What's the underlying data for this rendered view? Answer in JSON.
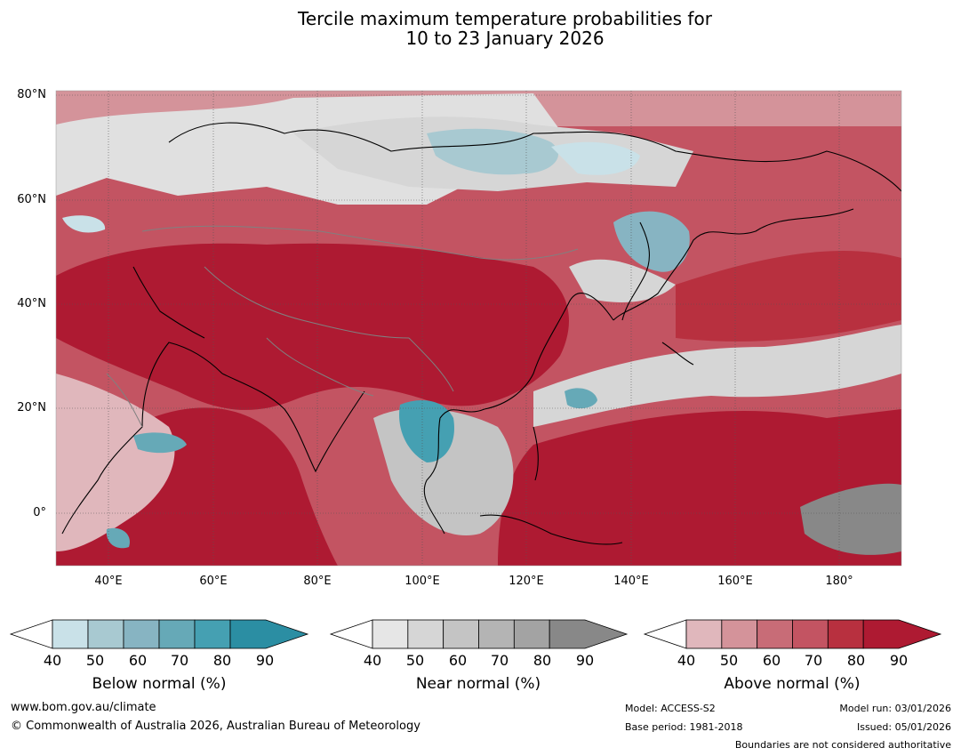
{
  "title": {
    "line1": "Tercile maximum temperature probabilities for",
    "line2": "10 to 23 January 2026"
  },
  "map": {
    "region": "Asia and western Pacific",
    "lat_labels": [
      "80°N",
      "60°N",
      "40°N",
      "20°N",
      "0°"
    ],
    "lon_labels": [
      "40°E",
      "60°E",
      "80°E",
      "100°E",
      "120°E",
      "140°E",
      "160°E",
      "180°"
    ]
  },
  "colorbars": [
    {
      "label": "Below normal (%)",
      "ticks": [
        "40",
        "50",
        "60",
        "70",
        "80",
        "90"
      ],
      "colors": [
        "#c9e1e8",
        "#a8c9d1",
        "#87b4c2",
        "#66a9b7",
        "#45a0b2",
        "#2b8ea3"
      ]
    },
    {
      "label": "Near normal (%)",
      "ticks": [
        "40",
        "50",
        "60",
        "70",
        "80",
        "90"
      ],
      "colors": [
        "#e6e6e6",
        "#d6d6d6",
        "#c4c4c4",
        "#b4b4b4",
        "#a3a3a3",
        "#888888"
      ]
    },
    {
      "label": "Above normal (%)",
      "ticks": [
        "40",
        "50",
        "60",
        "70",
        "80",
        "90"
      ],
      "colors": [
        "#e0b7bc",
        "#d4939a",
        "#c86c77",
        "#c35462",
        "#b8303f",
        "#ae1a32"
      ]
    }
  ],
  "footer": {
    "website": "www.bom.gov.au/climate",
    "copyright": "© Commonwealth of Australia 2026, Australian Bureau of Meteorology",
    "model": "Model: ACCESS-S2",
    "base_period": "Base period: 1981-2018",
    "model_run": "Model run: 03/01/2026",
    "issued": "Issued: 05/01/2026",
    "disclaimer": "Boundaries are not considered authoritative"
  }
}
